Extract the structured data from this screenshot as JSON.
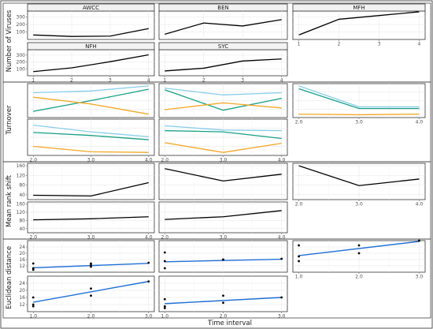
{
  "xlabel": "Time interval",
  "colors": {
    "black": "#000000",
    "orange": "#f5a623",
    "green": "#16a085",
    "lightblue": "#87ceeb",
    "blue": "#1f6fd6"
  },
  "chart_data": [
    {
      "type": "line",
      "ylabel": "Number of Viruses",
      "panels": [
        {
          "strip": "AWCC",
          "x": [
            1,
            2,
            3,
            4
          ],
          "series": [
            {
              "color": "black",
              "y": [
                60,
                40,
                45,
                145
              ]
            }
          ]
        },
        {
          "strip": "BEN",
          "x": [
            1,
            2,
            3,
            4
          ],
          "series": [
            {
              "color": "black",
              "y": [
                70,
                220,
                180,
                265
              ]
            }
          ]
        },
        {
          "strip": "MFH",
          "x": [
            1,
            2,
            3,
            4
          ],
          "series": [
            {
              "color": "black",
              "y": [
                60,
                270,
                320,
                370
              ]
            }
          ]
        },
        {
          "strip": "NFH",
          "x": [
            1,
            2,
            3,
            4
          ],
          "series": [
            {
              "color": "black",
              "y": [
                60,
                115,
                205,
                305
              ]
            }
          ]
        },
        {
          "strip": "SYC",
          "x": [
            1,
            2,
            3,
            4
          ],
          "series": [
            {
              "color": "black",
              "y": [
                70,
                110,
                215,
                245
              ]
            }
          ]
        }
      ],
      "xticks": [
        "1",
        "2",
        "3",
        "4"
      ],
      "yticks": [
        100,
        200,
        300
      ],
      "ylim": [
        0,
        380
      ]
    },
    {
      "type": "line",
      "ylabel": "Turnover",
      "panels": [
        {
          "x": [
            2,
            3,
            4
          ],
          "series": [
            {
              "color": "lightblue",
              "y": [
                0.74,
                0.77,
                0.86
              ]
            },
            {
              "color": "green",
              "y": [
                0.41,
                0.6,
                0.8
              ]
            },
            {
              "color": "orange",
              "y": [
                0.66,
                0.54,
                0.36
              ]
            }
          ]
        },
        {
          "x": [
            2,
            3,
            4
          ],
          "series": [
            {
              "color": "lightblue",
              "y": [
                0.82,
                0.7,
                0.74
              ]
            },
            {
              "color": "green",
              "y": [
                0.79,
                0.43,
                0.64
              ]
            },
            {
              "color": "orange",
              "y": [
                0.44,
                0.56,
                0.47
              ]
            }
          ]
        },
        {
          "x": [
            2,
            3,
            4
          ],
          "series": [
            {
              "color": "lightblue",
              "y": [
                0.86,
                0.49,
                0.49
              ]
            },
            {
              "color": "green",
              "y": [
                0.81,
                0.46,
                0.46
              ]
            },
            {
              "color": "orange",
              "y": [
                0.36,
                0.35,
                0.36
              ]
            }
          ]
        },
        {
          "x": [
            2,
            3,
            4
          ],
          "series": [
            {
              "color": "lightblue",
              "y": [
                0.8,
                0.69,
                0.61
              ]
            },
            {
              "color": "green",
              "y": [
                0.68,
                0.63,
                0.56
              ]
            },
            {
              "color": "orange",
              "y": [
                0.45,
                0.36,
                0.35
              ]
            }
          ]
        },
        {
          "x": [
            2,
            3,
            4
          ],
          "series": [
            {
              "color": "lightblue",
              "y": [
                0.79,
                0.72,
                0.71
              ]
            },
            {
              "color": "green",
              "y": [
                0.71,
                0.69,
                0.58
              ]
            },
            {
              "color": "orange",
              "y": [
                0.51,
                0.35,
                0.5
              ]
            }
          ]
        }
      ],
      "xticks": [
        "2.0",
        "3.0",
        "4.0"
      ],
      "ylim": [
        0.3,
        0.9
      ]
    },
    {
      "type": "line",
      "ylabel": "Mean rank shift",
      "panels": [
        {
          "x": [
            2,
            3,
            4
          ],
          "series": [
            {
              "color": "black",
              "y": [
                38,
                35,
                90
              ]
            }
          ]
        },
        {
          "x": [
            2,
            3,
            4
          ],
          "series": [
            {
              "color": "black",
              "y": [
                148,
                97,
                125
              ]
            }
          ]
        },
        {
          "x": [
            2,
            3,
            4
          ],
          "series": [
            {
              "color": "black",
              "y": [
                160,
                78,
                105
              ]
            }
          ]
        },
        {
          "x": [
            2,
            3,
            4
          ],
          "series": [
            {
              "color": "black",
              "y": [
                83,
                88,
                98
              ]
            }
          ]
        },
        {
          "x": [
            2,
            3,
            4
          ],
          "series": [
            {
              "color": "black",
              "y": [
                85,
                98,
                128
              ]
            }
          ]
        }
      ],
      "xticks": [
        "2.0",
        "3.0",
        "4.0"
      ],
      "yticks": [
        40,
        80,
        120,
        160
      ],
      "ylim": [
        20,
        170
      ]
    },
    {
      "type": "scatter",
      "ylabel": "Euclidean distance",
      "panels": [
        {
          "points": [
            [
              1,
              10.5
            ],
            [
              1,
              9.5
            ],
            [
              1,
              13.5
            ],
            [
              2,
              13.5
            ],
            [
              2,
              12.5
            ],
            [
              2,
              11.5
            ],
            [
              3,
              14
            ]
          ],
          "fit": [
            [
              1,
              10.8
            ],
            [
              3,
              13.6
            ]
          ]
        },
        {
          "points": [
            [
              1,
              15
            ],
            [
              1,
              20.5
            ],
            [
              1,
              10.5
            ],
            [
              2,
              16
            ],
            [
              2,
              16
            ],
            [
              3,
              16.5
            ]
          ],
          "fit": [
            [
              1,
              14.6
            ],
            [
              3,
              16.2
            ]
          ]
        },
        {
          "points": [
            [
              1,
              25
            ],
            [
              1,
              15
            ],
            [
              1,
              18
            ],
            [
              2,
              25
            ],
            [
              2,
              20
            ],
            [
              3,
              28
            ]
          ],
          "fit": [
            [
              1,
              18.5
            ],
            [
              3,
              27.5
            ]
          ]
        },
        {
          "points": [
            [
              1,
              16
            ],
            [
              1,
              12
            ],
            [
              1,
              11
            ],
            [
              2,
              21
            ],
            [
              2,
              17
            ],
            [
              3,
              25
            ]
          ],
          "fit": [
            [
              1,
              13.3
            ],
            [
              3,
              25
            ]
          ]
        },
        {
          "points": [
            [
              1,
              15
            ],
            [
              1,
              11
            ],
            [
              1,
              10
            ],
            [
              2,
              17
            ],
            [
              2,
              13
            ],
            [
              3,
              16
            ]
          ],
          "fit": [
            [
              1,
              12.5
            ],
            [
              3,
              16
            ]
          ]
        }
      ],
      "xticks": [
        "1.0",
        "2.0",
        "3.0"
      ],
      "yticks": [
        12,
        16,
        20,
        24
      ],
      "ylim": [
        8,
        28
      ]
    }
  ]
}
